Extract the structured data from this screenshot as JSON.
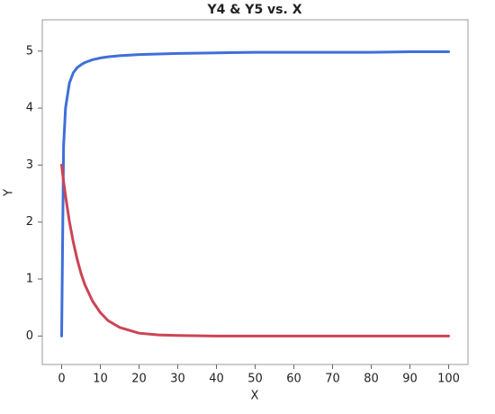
{
  "chart_data": {
    "type": "line",
    "title": "Y4 & Y5 vs. X",
    "x_label": "X",
    "y_label": "Y",
    "x": [
      0,
      0.5,
      1,
      2,
      3,
      4,
      5,
      6,
      8,
      10,
      12,
      15,
      20,
      25,
      30,
      40,
      50,
      60,
      70,
      80,
      90,
      100
    ],
    "series": [
      {
        "color": "#3f6fd8",
        "values": [
          0,
          3.33,
          4,
          4.44,
          4.62,
          4.71,
          4.76,
          4.8,
          4.85,
          4.88,
          4.9,
          4.92,
          4.94,
          4.95,
          4.96,
          4.97,
          4.98,
          4.98,
          4.98,
          4.98,
          4.99,
          4.99
        ]
      },
      {
        "color": "#cc4455",
        "values": [
          3,
          2.71,
          2.46,
          2.01,
          1.65,
          1.35,
          1.1,
          0.9,
          0.61,
          0.41,
          0.27,
          0.15,
          0.05,
          0.02,
          0.01,
          0,
          0,
          0,
          0,
          0,
          0,
          0
        ]
      }
    ],
    "xlim": [
      -5,
      105
    ],
    "xticks": [
      0,
      10,
      20,
      30,
      40,
      50,
      60,
      70,
      80,
      90,
      100
    ],
    "ylim": [
      -0.5,
      5.55
    ],
    "yticks": [
      0,
      1,
      2,
      3,
      4,
      5
    ],
    "grid": false
  }
}
